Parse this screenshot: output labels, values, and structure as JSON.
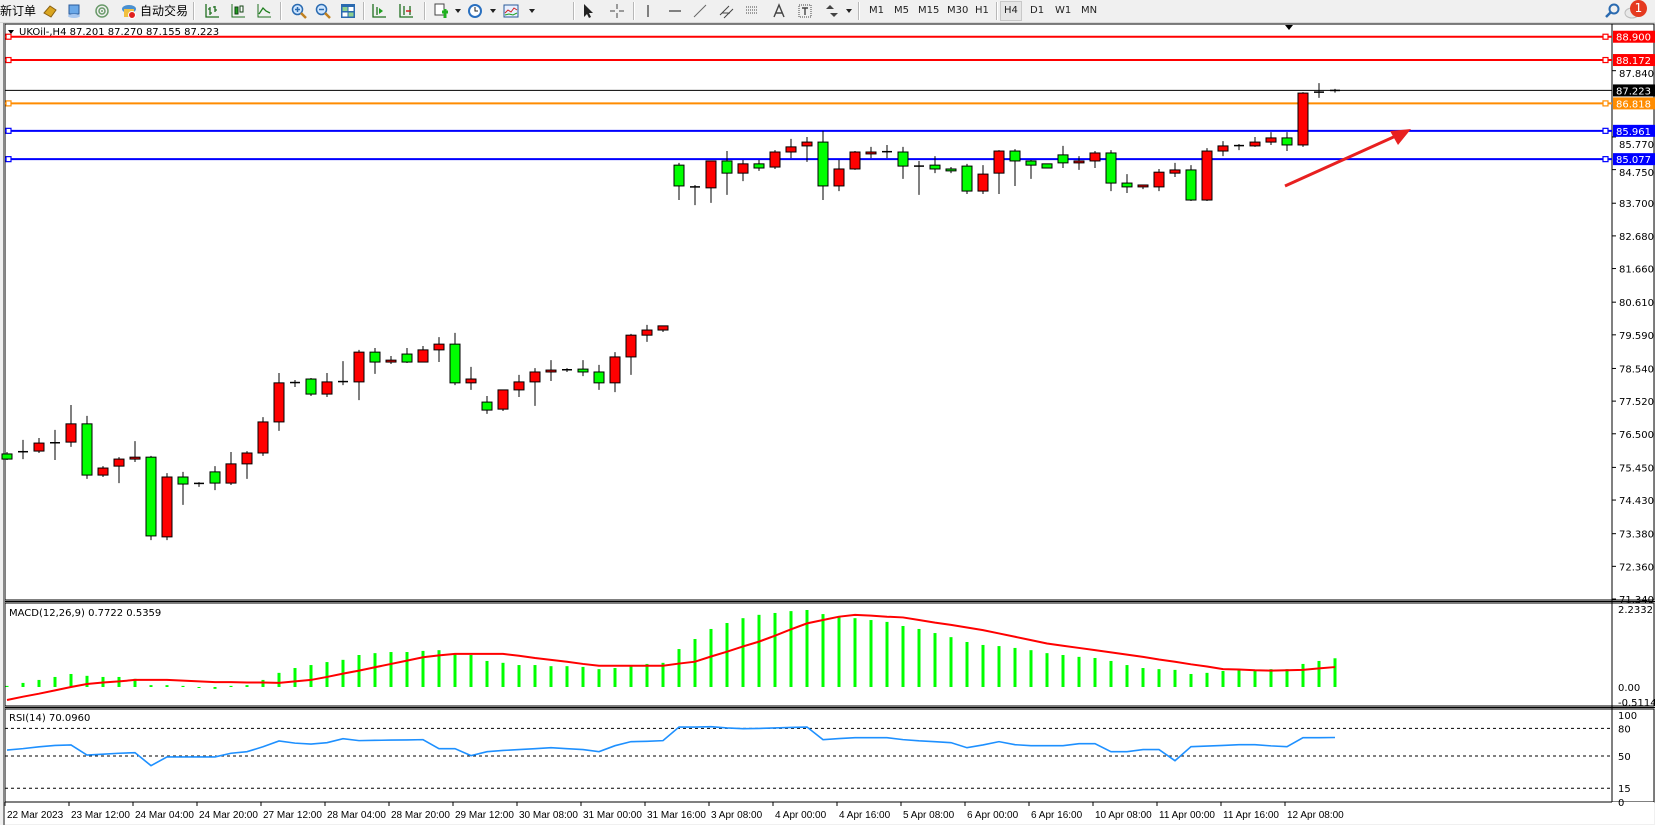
{
  "toolbar": {
    "new_order": "新订单",
    "auto_trading": "自动交易",
    "timeframes": [
      "M1",
      "M5",
      "M15",
      "M30",
      "H1",
      "H4",
      "D1",
      "W1",
      "MN"
    ],
    "active_timeframe": "H4",
    "notification_count": "1",
    "icons": [
      "new-order-icon",
      "gold-bar-icon",
      "market-watch-icon",
      "signal-icon",
      "auto-trading-icon",
      "bar-chart-icon",
      "candlestick-icon",
      "line-chart-icon",
      "zoom-in-icon",
      "zoom-out-icon",
      "tile-windows-icon",
      "chart-shift-icon",
      "autoscroll-icon",
      "new-chart-icon",
      "clock-icon",
      "indicators-icon",
      "cursor-icon",
      "crosshair-icon",
      "vertical-line-icon",
      "horizontal-line-icon",
      "trendline-icon",
      "equidistant-channel-icon",
      "fibonacci-icon",
      "text-icon",
      "text-label-icon",
      "arrows-icon",
      "search-icon",
      "chat-icon"
    ]
  },
  "chart": {
    "legend": "UKOil-,H4  87.201 87.270 87.155 87.223",
    "colors": {
      "up": "#ff0000",
      "down": "#00ff00",
      "wick": "#000000"
    },
    "ylim": [
      71.34,
      89.27
    ],
    "price_ticks": [
      {
        "value": 87.84,
        "label": "87.840"
      },
      {
        "value": 85.77,
        "label": "85.770"
      },
      {
        "value": 84.75,
        "label": "84.750"
      },
      {
        "value": 83.7,
        "label": "83.700"
      },
      {
        "value": 82.68,
        "label": "82.680"
      },
      {
        "value": 81.66,
        "label": "81.660"
      },
      {
        "value": 80.61,
        "label": "80.610"
      },
      {
        "value": 79.59,
        "label": "79.590"
      },
      {
        "value": 78.54,
        "label": "78.540"
      },
      {
        "value": 77.52,
        "label": "77.520"
      },
      {
        "value": 76.5,
        "label": "76.500"
      },
      {
        "value": 75.45,
        "label": "75.450"
      },
      {
        "value": 74.43,
        "label": "74.430"
      },
      {
        "value": 73.38,
        "label": "73.380"
      },
      {
        "value": 72.36,
        "label": "72.360"
      },
      {
        "value": 71.34,
        "label": "71.340"
      }
    ],
    "hlines": [
      {
        "value": 88.9,
        "label": "88.900",
        "color": "#ff0000"
      },
      {
        "value": 88.172,
        "label": "88.172",
        "color": "#ff0000"
      },
      {
        "value": 86.818,
        "label": "86.818",
        "color": "#ff8c00"
      },
      {
        "value": 85.961,
        "label": "85.961",
        "color": "#0000ff"
      },
      {
        "value": 85.077,
        "label": "85.077",
        "color": "#0000ff"
      }
    ],
    "current_price": {
      "value": 87.223,
      "label": "87.223"
    },
    "arrow_color": "#e82020",
    "time_labels": [
      "22 Mar 2023",
      "23 Mar 12:00",
      "24 Mar 04:00",
      "24 Mar 20:00",
      "27 Mar 12:00",
      "28 Mar 04:00",
      "28 Mar 20:00",
      "29 Mar 12:00",
      "30 Mar 08:00",
      "31 Mar 00:00",
      "31 Mar 16:00",
      "3 Apr 08:00",
      "4 Apr 00:00",
      "4 Apr 16:00",
      "5 Apr 08:00",
      "6 Apr 00:00",
      "6 Apr 16:00",
      "10 Apr 08:00",
      "11 Apr 00:00",
      "11 Apr 16:00",
      "12 Apr 08:00"
    ],
    "candles": [
      [
        75.87,
        75.93,
        75.68,
        75.71
      ],
      [
        75.92,
        76.31,
        75.71,
        75.94
      ],
      [
        75.96,
        76.37,
        75.9,
        76.21
      ],
      [
        76.2,
        76.62,
        75.68,
        76.22
      ],
      [
        76.24,
        77.4,
        76.09,
        76.81
      ],
      [
        76.81,
        77.06,
        75.09,
        75.21
      ],
      [
        75.21,
        75.49,
        75.15,
        75.43
      ],
      [
        75.49,
        75.77,
        74.96,
        75.71
      ],
      [
        75.71,
        76.27,
        75.62,
        75.77
      ],
      [
        75.77,
        75.81,
        73.18,
        73.31
      ],
      [
        73.28,
        75.27,
        73.18,
        75.15
      ],
      [
        75.15,
        75.31,
        74.28,
        74.93
      ],
      [
        74.93,
        74.99,
        74.84,
        74.95
      ],
      [
        75.31,
        75.49,
        74.74,
        74.96
      ],
      [
        74.96,
        75.93,
        74.9,
        75.56
      ],
      [
        75.56,
        75.96,
        75.09,
        75.9
      ],
      [
        75.9,
        77.02,
        75.81,
        76.87
      ],
      [
        76.87,
        78.4,
        76.59,
        78.09
      ],
      [
        78.09,
        78.18,
        77.96,
        78.1
      ],
      [
        78.21,
        78.24,
        77.68,
        77.74
      ],
      [
        77.74,
        78.4,
        77.65,
        78.12
      ],
      [
        78.12,
        78.77,
        78.02,
        78.13
      ],
      [
        78.12,
        79.12,
        77.55,
        79.05
      ],
      [
        79.05,
        79.18,
        78.37,
        78.74
      ],
      [
        78.74,
        78.93,
        78.68,
        78.8
      ],
      [
        78.99,
        79.18,
        78.71,
        78.74
      ],
      [
        78.74,
        79.24,
        78.74,
        79.12
      ],
      [
        79.12,
        79.52,
        78.74,
        79.3
      ],
      [
        79.3,
        79.65,
        78.02,
        78.09
      ],
      [
        78.09,
        78.59,
        77.87,
        78.21
      ],
      [
        77.49,
        77.68,
        77.12,
        77.24
      ],
      [
        77.27,
        77.87,
        77.21,
        77.87
      ],
      [
        77.87,
        78.34,
        77.65,
        78.12
      ],
      [
        78.12,
        78.55,
        77.37,
        78.43
      ],
      [
        78.43,
        78.8,
        78.15,
        78.49
      ],
      [
        78.49,
        78.55,
        78.43,
        78.5
      ],
      [
        78.52,
        78.8,
        78.3,
        78.43
      ],
      [
        78.43,
        78.65,
        77.87,
        78.09
      ],
      [
        78.09,
        79.05,
        77.8,
        78.9
      ],
      [
        78.9,
        79.62,
        78.34,
        79.58
      ],
      [
        79.58,
        79.9,
        79.37,
        79.74
      ],
      [
        79.74,
        79.87,
        79.68,
        79.87
      ],
      [
        84.89,
        84.96,
        83.8,
        84.24
      ],
      [
        84.21,
        84.27,
        83.64,
        84.2
      ],
      [
        84.18,
        85.02,
        83.71,
        85.02
      ],
      [
        85.02,
        85.33,
        83.96,
        84.64
      ],
      [
        84.64,
        85.05,
        84.39,
        84.93
      ],
      [
        84.93,
        85.05,
        84.71,
        84.8
      ],
      [
        84.83,
        85.36,
        84.77,
        85.3
      ],
      [
        85.3,
        85.71,
        85.11,
        85.46
      ],
      [
        85.49,
        85.77,
        84.99,
        85.61
      ],
      [
        85.61,
        85.96,
        83.8,
        84.24
      ],
      [
        84.24,
        85.05,
        84.08,
        84.77
      ],
      [
        84.77,
        85.33,
        84.74,
        85.3
      ],
      [
        85.24,
        85.46,
        85.11,
        85.3
      ],
      [
        85.3,
        85.52,
        85.11,
        85.31
      ],
      [
        85.3,
        85.46,
        84.46,
        84.86
      ],
      [
        84.86,
        85.02,
        83.96,
        84.85
      ],
      [
        84.89,
        85.17,
        84.64,
        84.77
      ],
      [
        84.77,
        84.83,
        84.64,
        84.71
      ],
      [
        84.86,
        84.93,
        83.99,
        84.08
      ],
      [
        84.08,
        84.89,
        83.99,
        84.61
      ],
      [
        84.64,
        85.36,
        83.99,
        85.33
      ],
      [
        85.33,
        85.39,
        84.24,
        85.02
      ],
      [
        85.02,
        85.05,
        84.46,
        84.89
      ],
      [
        84.93,
        84.93,
        84.8,
        84.8
      ],
      [
        85.21,
        85.49,
        84.8,
        84.96
      ],
      [
        84.96,
        85.17,
        84.74,
        85.02
      ],
      [
        85.02,
        85.33,
        84.8,
        85.27
      ],
      [
        85.27,
        85.36,
        84.08,
        84.33
      ],
      [
        84.33,
        84.61,
        84.02,
        84.21
      ],
      [
        84.21,
        84.27,
        84.14,
        84.27
      ],
      [
        84.21,
        84.77,
        84.08,
        84.67
      ],
      [
        84.64,
        84.96,
        84.52,
        84.74
      ],
      [
        84.74,
        84.89,
        83.77,
        83.8
      ],
      [
        83.8,
        85.42,
        83.77,
        85.33
      ],
      [
        85.33,
        85.64,
        85.17,
        85.49
      ],
      [
        85.49,
        85.55,
        85.36,
        85.5
      ],
      [
        85.49,
        85.77,
        85.46,
        85.61
      ],
      [
        85.61,
        85.92,
        85.52,
        85.74
      ],
      [
        85.74,
        85.92,
        85.33,
        85.52
      ],
      [
        85.52,
        87.17,
        85.46,
        87.14
      ],
      [
        87.14,
        87.45,
        86.99,
        87.17
      ],
      [
        87.201,
        87.27,
        87.155,
        87.223
      ]
    ]
  },
  "macd": {
    "legend": "MACD(12,26,9) 0.7722 0.5359",
    "ylim": [
      -0.5114,
      2.2332
    ],
    "axis_labels": [
      {
        "value": 2.2332,
        "label": "2.2332"
      },
      {
        "value": 0,
        "label": "0.00"
      },
      {
        "value": -0.5114,
        "label": "-0.5114"
      }
    ],
    "histogram_color": "#00ff00",
    "signal_color": "#ff0000",
    "histogram": [
      0.03,
      0.11,
      0.19,
      0.27,
      0.35,
      0.3,
      0.27,
      0.27,
      0.22,
      0.05,
      0.05,
      0.03,
      -0.02,
      -0.05,
      0.03,
      0.05,
      0.19,
      0.38,
      0.51,
      0.59,
      0.67,
      0.73,
      0.86,
      0.91,
      0.94,
      0.94,
      0.97,
      0.99,
      0.91,
      0.86,
      0.7,
      0.65,
      0.59,
      0.59,
      0.56,
      0.56,
      0.54,
      0.48,
      0.51,
      0.56,
      0.62,
      0.65,
      1.02,
      1.29,
      1.56,
      1.72,
      1.85,
      1.94,
      1.99,
      2.04,
      2.07,
      1.96,
      1.88,
      1.85,
      1.8,
      1.75,
      1.64,
      1.56,
      1.45,
      1.34,
      1.21,
      1.13,
      1.1,
      1.05,
      0.99,
      0.91,
      0.86,
      0.81,
      0.78,
      0.7,
      0.59,
      0.51,
      0.48,
      0.46,
      0.35,
      0.38,
      0.43,
      0.46,
      0.46,
      0.48,
      0.48,
      0.62,
      0.7,
      0.7722
    ],
    "signal": [
      -0.35,
      -0.26,
      -0.18,
      -0.09,
      0.0,
      0.08,
      0.12,
      0.15,
      0.19,
      0.19,
      0.19,
      0.17,
      0.15,
      0.13,
      0.13,
      0.12,
      0.12,
      0.11,
      0.15,
      0.19,
      0.27,
      0.36,
      0.44,
      0.53,
      0.62,
      0.71,
      0.8,
      0.85,
      0.89,
      0.89,
      0.89,
      0.89,
      0.84,
      0.78,
      0.73,
      0.68,
      0.62,
      0.57,
      0.57,
      0.57,
      0.57,
      0.57,
      0.63,
      0.68,
      0.82,
      0.95,
      1.09,
      1.22,
      1.38,
      1.55,
      1.71,
      1.8,
      1.89,
      1.94,
      1.92,
      1.89,
      1.87,
      1.8,
      1.73,
      1.67,
      1.6,
      1.53,
      1.44,
      1.35,
      1.26,
      1.17,
      1.11,
      1.05,
      0.99,
      0.93,
      0.87,
      0.81,
      0.74,
      0.68,
      0.61,
      0.55,
      0.48,
      0.47,
      0.45,
      0.44,
      0.45,
      0.46,
      0.5,
      0.5359
    ]
  },
  "rsi": {
    "legend": "RSI(14) 70.0960",
    "ylim": [
      0,
      100
    ],
    "line_color": "#1e90ff",
    "levels": [
      80,
      50,
      15
    ],
    "axis_labels": [
      {
        "value": 100,
        "label": "100"
      },
      {
        "value": 80,
        "label": "80"
      },
      {
        "value": 50,
        "label": "50"
      },
      {
        "value": 15,
        "label": "15"
      },
      {
        "value": 0,
        "label": "0"
      }
    ],
    "values": [
      56.5,
      58,
      60,
      61.5,
      62,
      51,
      52,
      53,
      53.6,
      39.5,
      49,
      49,
      49,
      49,
      53,
      54.7,
      60,
      66.3,
      64,
      63,
      64.5,
      68.8,
      66.7,
      67,
      67.3,
      67.5,
      67.8,
      58,
      58,
      50.4,
      54.7,
      56,
      57,
      58,
      59,
      58,
      57,
      54.7,
      61.2,
      65.6,
      66,
      66.7,
      81.5,
      81.5,
      81.9,
      80.5,
      79.7,
      80,
      80.5,
      81,
      81.5,
      67.8,
      69,
      69.9,
      69.9,
      69.9,
      67.8,
      66.5,
      65.6,
      64.5,
      59,
      62,
      65.6,
      62.3,
      61.2,
      61.2,
      61.2,
      63.4,
      63.4,
      54.7,
      54.7,
      57,
      57,
      44.9,
      60.1,
      60.8,
      61.5,
      62.3,
      62.3,
      61,
      60.1,
      69.9,
      69.9,
      70.096
    ]
  }
}
